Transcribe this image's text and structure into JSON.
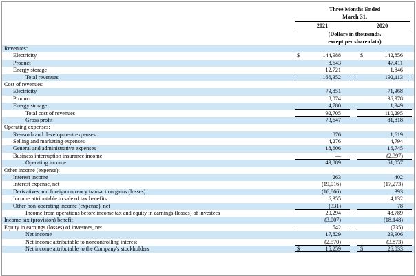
{
  "header": {
    "period_line1": "Three Months Ended",
    "period_line2": "March 31,",
    "year_2021": "2021",
    "year_2020": "2020",
    "units_line1": "(Dollars in thousands,",
    "units_line2": "except per share data)"
  },
  "rows": [
    {
      "label": "Revenues:",
      "indent": 0,
      "shade": true,
      "c1": "",
      "v1": "",
      "c2": "",
      "v2": ""
    },
    {
      "label": "Electricity",
      "indent": 1,
      "shade": false,
      "c1": "$",
      "v1": "144,988",
      "c2": "$",
      "v2": "142,856"
    },
    {
      "label": "Product",
      "indent": 1,
      "shade": true,
      "c1": "",
      "v1": "8,643",
      "c2": "",
      "v2": "47,411"
    },
    {
      "label": "Energy storage",
      "indent": 1,
      "shade": false,
      "c1": "",
      "v1": "12,721",
      "c2": "",
      "v2": "1,846",
      "ul": true
    },
    {
      "label": "Total revenues",
      "indent": 2,
      "shade": true,
      "c1": "",
      "v1": "166,352",
      "c2": "",
      "v2": "192,113",
      "ul": true
    },
    {
      "label": "Cost of revenues:",
      "indent": 0,
      "shade": false,
      "c1": "",
      "v1": "",
      "c2": "",
      "v2": ""
    },
    {
      "label": "Electricity",
      "indent": 1,
      "shade": true,
      "c1": "",
      "v1": "79,851",
      "c2": "",
      "v2": "71,368"
    },
    {
      "label": "Product",
      "indent": 1,
      "shade": false,
      "c1": "",
      "v1": "8,074",
      "c2": "",
      "v2": "36,978"
    },
    {
      "label": "Energy storage",
      "indent": 1,
      "shade": true,
      "c1": "",
      "v1": "4,780",
      "c2": "",
      "v2": "1,949",
      "ul": true
    },
    {
      "label": "Total cost of revenues",
      "indent": 2,
      "shade": false,
      "c1": "",
      "v1": "92,705",
      "c2": "",
      "v2": "110,295",
      "ul": true
    },
    {
      "label": "Gross profit",
      "indent": 2,
      "shade": true,
      "c1": "",
      "v1": "73,647",
      "c2": "",
      "v2": "81,818"
    },
    {
      "label": "Operating expenses:",
      "indent": 0,
      "shade": false,
      "c1": "",
      "v1": "",
      "c2": "",
      "v2": ""
    },
    {
      "label": "Research and development expenses",
      "indent": 1,
      "shade": true,
      "c1": "",
      "v1": "876",
      "c2": "",
      "v2": "1,619"
    },
    {
      "label": "Selling and marketing expenses",
      "indent": 1,
      "shade": false,
      "c1": "",
      "v1": "4,276",
      "c2": "",
      "v2": "4,794"
    },
    {
      "label": "General and administrative expenses",
      "indent": 1,
      "shade": true,
      "c1": "",
      "v1": "18,606",
      "c2": "",
      "v2": "16,745"
    },
    {
      "label": "Business interruption insurance income",
      "indent": 1,
      "shade": false,
      "c1": "",
      "v1": "—",
      "c2": "",
      "v2": "(2,397)",
      "ul": true
    },
    {
      "label": "Operating income",
      "indent": 2,
      "shade": true,
      "c1": "",
      "v1": "49,889",
      "c2": "",
      "v2": "61,057"
    },
    {
      "label": "Other income (expense):",
      "indent": 0,
      "shade": false,
      "c1": "",
      "v1": "",
      "c2": "",
      "v2": ""
    },
    {
      "label": "Interest income",
      "indent": 1,
      "shade": true,
      "c1": "",
      "v1": "263",
      "c2": "",
      "v2": "402"
    },
    {
      "label": "Interest expense, net",
      "indent": 1,
      "shade": false,
      "c1": "",
      "v1": "(19,016)",
      "c2": "",
      "v2": "(17,273)"
    },
    {
      "label": "Derivatives and foreign currency transaction gains (losses)",
      "indent": 1,
      "shade": true,
      "c1": "",
      "v1": "(16,866)",
      "c2": "",
      "v2": "393"
    },
    {
      "label": "Income attributable to sale of tax benefits",
      "indent": 1,
      "shade": false,
      "c1": "",
      "v1": "6,355",
      "c2": "",
      "v2": "4,132"
    },
    {
      "label": "Other non-operating income (expense), net",
      "indent": 1,
      "shade": true,
      "c1": "",
      "v1": "(331)",
      "c2": "",
      "v2": "78",
      "ul": true
    },
    {
      "label": "Income from operations before income tax and equity in earnings (losses) of investees",
      "indent": 2,
      "shade": false,
      "c1": "",
      "v1": "20,294",
      "c2": "",
      "v2": "48,789"
    },
    {
      "label": "Income tax (provision) benefit",
      "indent": 0,
      "shade": true,
      "c1": "",
      "v1": "(3,007)",
      "c2": "",
      "v2": "(18,148)"
    },
    {
      "label": "Equity in earnings (losses) of investees, net",
      "indent": 0,
      "shade": false,
      "c1": "",
      "v1": "542",
      "c2": "",
      "v2": "(735)",
      "ul": true
    },
    {
      "label": "Net income",
      "indent": 2,
      "shade": true,
      "c1": "",
      "v1": "17,829",
      "c2": "",
      "v2": "29,906"
    },
    {
      "label": "Net income attributable to noncontrolling interest",
      "indent": 2,
      "shade": false,
      "c1": "",
      "v1": "(2,570)",
      "c2": "",
      "v2": "(3,873)",
      "ul": true
    },
    {
      "label": "Net income attributable to the Company's stockholders",
      "indent": 2,
      "shade": true,
      "c1": "$",
      "v1": "15,259",
      "c2": "$",
      "v2": "26,033",
      "dul": true
    }
  ]
}
